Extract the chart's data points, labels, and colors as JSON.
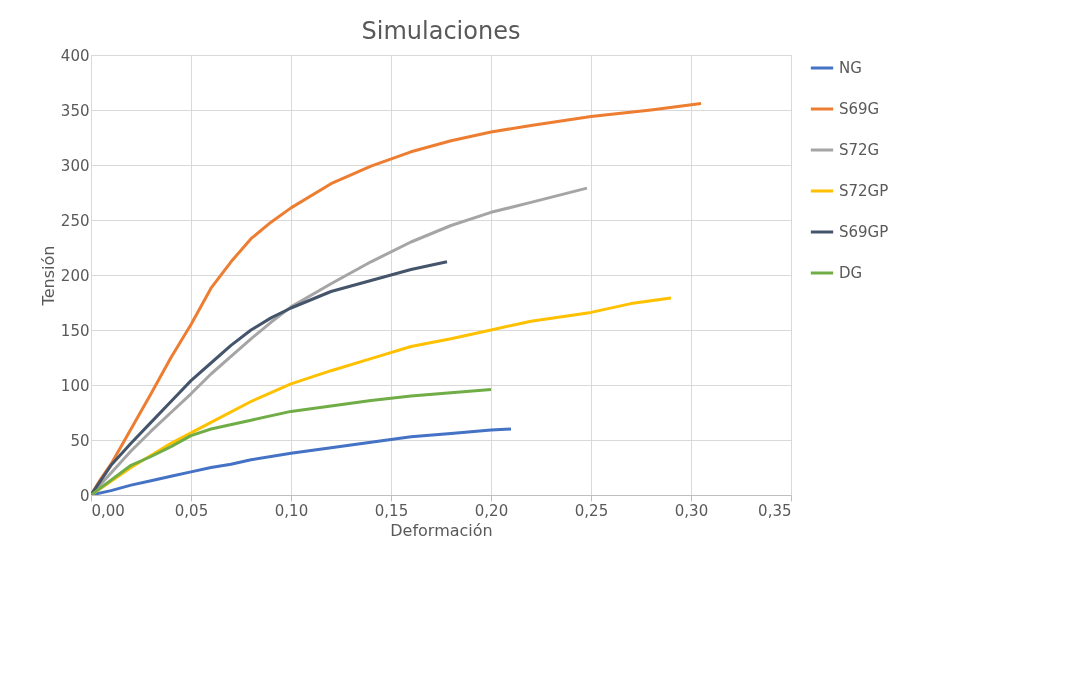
{
  "chart_data": {
    "type": "line",
    "title": "Simulaciones",
    "xlabel": "Deformación",
    "ylabel": "Tensión",
    "xlim": [
      0,
      0.35
    ],
    "ylim": [
      0,
      400
    ],
    "xticks": [
      {
        "value": 0,
        "label": "0,00"
      },
      {
        "value": 0.05,
        "label": "0,05"
      },
      {
        "value": 0.1,
        "label": "0,10"
      },
      {
        "value": 0.15,
        "label": "0,15"
      },
      {
        "value": 0.2,
        "label": "0,20"
      },
      {
        "value": 0.25,
        "label": "0,25"
      },
      {
        "value": 0.3,
        "label": "0,30"
      },
      {
        "value": 0.35,
        "label": "0,35"
      }
    ],
    "yticks": [
      0,
      50,
      100,
      150,
      200,
      250,
      300,
      350,
      400
    ],
    "grid": true,
    "legend": "right",
    "marker": "none",
    "line_style": "solid",
    "series": [
      {
        "name": "NG",
        "color": "#4472c4",
        "x": [
          0,
          0.01,
          0.02,
          0.03,
          0.04,
          0.05,
          0.06,
          0.07,
          0.08,
          0.1,
          0.12,
          0.14,
          0.16,
          0.18,
          0.2,
          0.21
        ],
        "values": [
          0,
          4,
          9,
          13,
          17,
          21,
          25,
          28,
          32,
          38,
          43,
          48,
          53,
          56,
          59,
          60
        ]
      },
      {
        "name": "S69G",
        "color": "#ed7d31",
        "x": [
          0,
          0.005,
          0.01,
          0.02,
          0.03,
          0.04,
          0.05,
          0.06,
          0.07,
          0.08,
          0.09,
          0.1,
          0.12,
          0.14,
          0.16,
          0.18,
          0.2,
          0.22,
          0.25,
          0.28,
          0.305
        ],
        "values": [
          0,
          15,
          28,
          60,
          92,
          125,
          155,
          188,
          212,
          233,
          248,
          261,
          283,
          299,
          312,
          322,
          330,
          336,
          344,
          350,
          356
        ]
      },
      {
        "name": "S72G",
        "color": "#a5a5a5",
        "x": [
          0,
          0.01,
          0.02,
          0.03,
          0.04,
          0.05,
          0.06,
          0.07,
          0.08,
          0.09,
          0.1,
          0.12,
          0.14,
          0.16,
          0.18,
          0.2,
          0.22,
          0.248
        ],
        "values": [
          0,
          20,
          40,
          58,
          75,
          92,
          110,
          126,
          142,
          157,
          171,
          192,
          212,
          230,
          245,
          257,
          266,
          279
        ]
      },
      {
        "name": "S72GP",
        "color": "#ffc000",
        "x": [
          0,
          0.02,
          0.04,
          0.06,
          0.08,
          0.1,
          0.12,
          0.14,
          0.16,
          0.18,
          0.2,
          0.22,
          0.25,
          0.27,
          0.29
        ],
        "values": [
          0,
          25,
          47,
          66,
          85,
          101,
          113,
          124,
          135,
          142,
          150,
          158,
          166,
          174,
          179
        ]
      },
      {
        "name": "S69GP",
        "color": "#44546a",
        "x": [
          0,
          0.01,
          0.02,
          0.03,
          0.04,
          0.05,
          0.06,
          0.07,
          0.08,
          0.09,
          0.1,
          0.12,
          0.14,
          0.16,
          0.178
        ],
        "values": [
          0,
          27,
          47,
          66,
          85,
          104,
          120,
          136,
          150,
          161,
          170,
          185,
          195,
          205,
          212
        ]
      },
      {
        "name": "DG",
        "color": "#70ad47",
        "x": [
          0,
          0.02,
          0.03,
          0.04,
          0.05,
          0.06,
          0.08,
          0.1,
          0.12,
          0.14,
          0.16,
          0.18,
          0.2
        ],
        "values": [
          0,
          27,
          35,
          44,
          54,
          60,
          68,
          76,
          81,
          86,
          90,
          93,
          96
        ]
      }
    ]
  }
}
